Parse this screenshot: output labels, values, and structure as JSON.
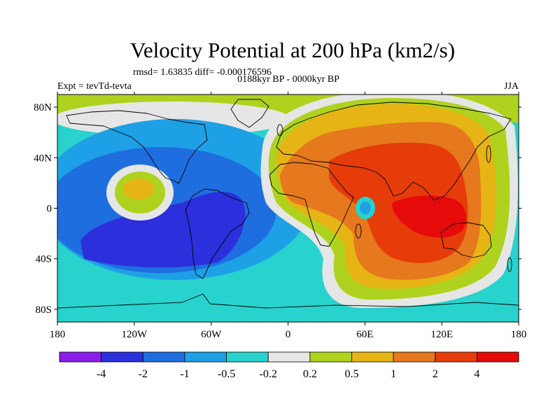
{
  "map": {
    "title": "Velocity Potential at 200 hPa (km2/s)",
    "stats_text": "rmsd= 1.63835 diff= -0.000176596",
    "left_label": "Expt = tevTd-tevta",
    "center_label": "0188kyr BP - 0000kyr BP",
    "right_label": "JJA",
    "projection": "cylindrical-equidistant",
    "lon_range": [
      -180,
      180
    ],
    "lat_range": [
      -90,
      90
    ],
    "lon_ticks": [
      {
        "value": -180,
        "label": "180"
      },
      {
        "value": -120,
        "label": "120W"
      },
      {
        "value": -60,
        "label": "60W"
      },
      {
        "value": 0,
        "label": "0"
      },
      {
        "value": 60,
        "label": "60E"
      },
      {
        "value": 120,
        "label": "120E"
      },
      {
        "value": 180,
        "label": "180"
      }
    ],
    "lat_ticks": [
      {
        "value": 80,
        "label": "80N"
      },
      {
        "value": 40,
        "label": "40N"
      },
      {
        "value": 0,
        "label": "0"
      },
      {
        "value": -40,
        "label": "40S"
      },
      {
        "value": -80,
        "label": "80S"
      }
    ]
  },
  "colorbar": {
    "colors": [
      "#8a1ee6",
      "#2c2fdc",
      "#1e6ee0",
      "#1ea0e6",
      "#28d2cd",
      "#e6e6e6",
      "#afd21e",
      "#e6b414",
      "#e6781e",
      "#e63c0a",
      "#e60a0a"
    ],
    "labels": [
      "-4",
      "-2",
      "-1",
      "-0.5",
      "-0.2",
      "0.2",
      "0.5",
      "1",
      "2",
      "4"
    ]
  }
}
